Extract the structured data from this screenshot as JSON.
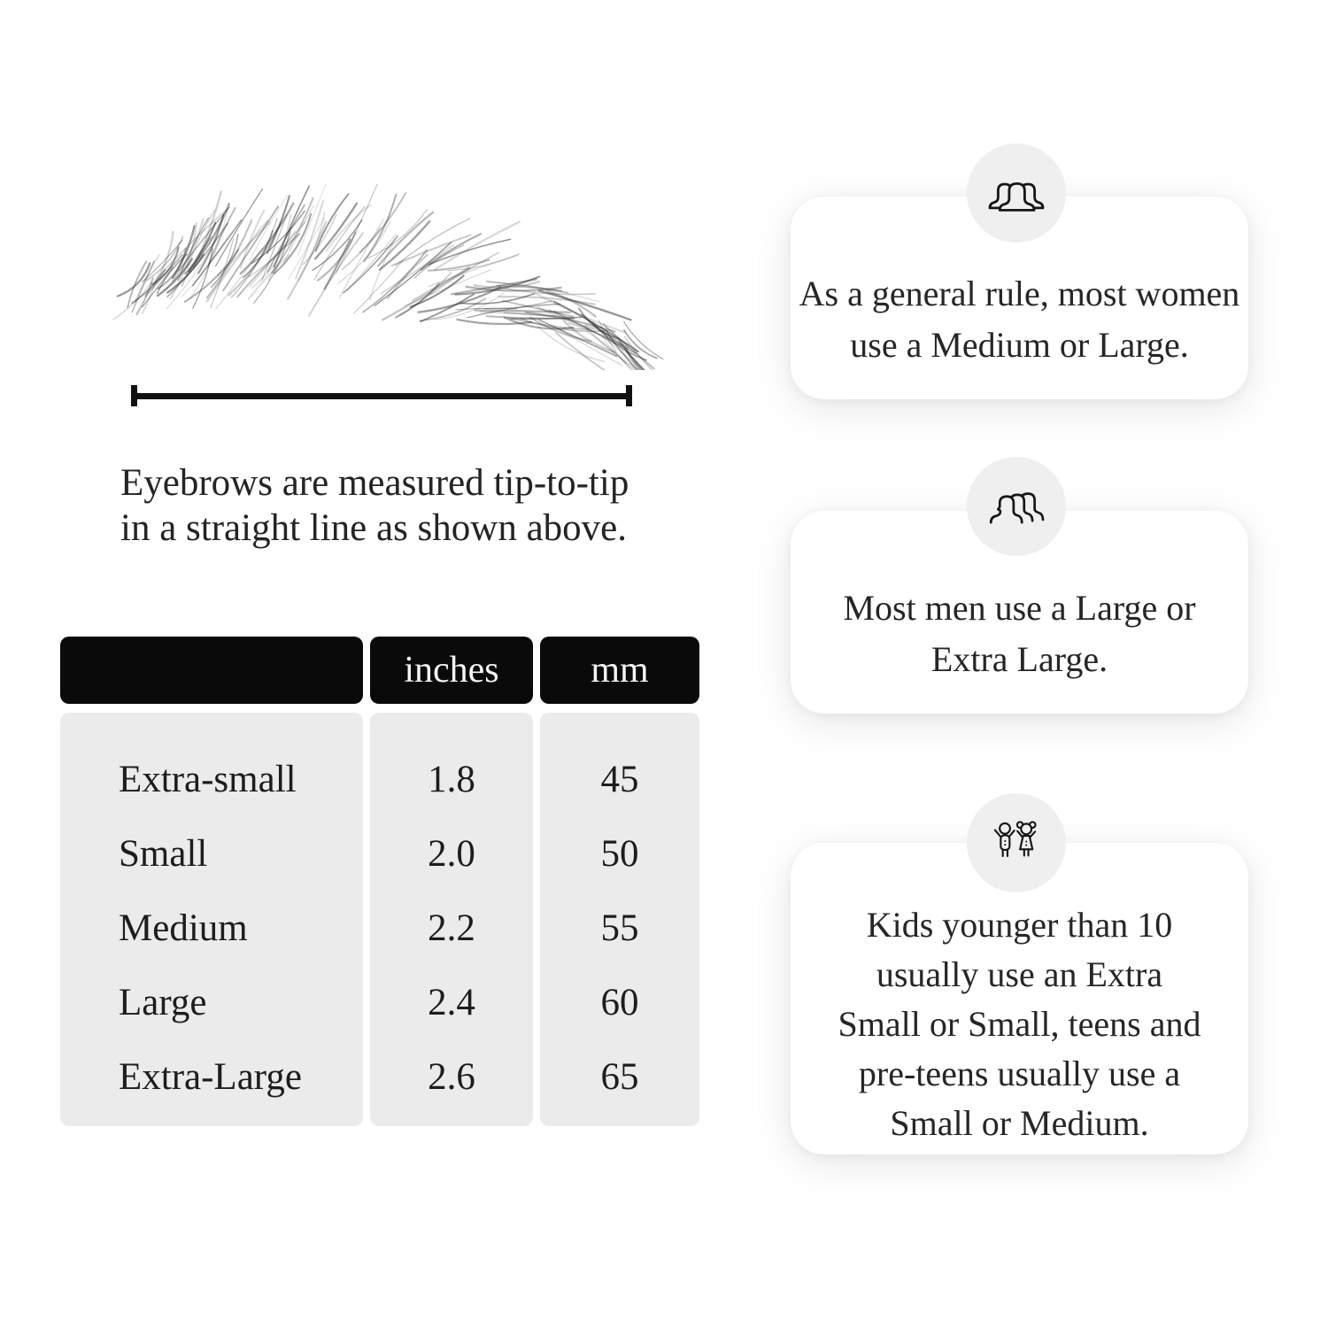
{
  "measurement": {
    "caption": "Eyebrows are measured tip-to-tip\nin a straight line as shown above."
  },
  "size_table": {
    "headers": [
      "",
      "inches",
      "mm"
    ],
    "rows": [
      {
        "label": "Extra-small",
        "inches": "1.8",
        "mm": "45"
      },
      {
        "label": "Small",
        "inches": "2.0",
        "mm": "50"
      },
      {
        "label": "Medium",
        "inches": "2.2",
        "mm": "55"
      },
      {
        "label": "Large",
        "inches": "2.4",
        "mm": "60"
      },
      {
        "label": "Extra-Large",
        "inches": "2.6",
        "mm": "65"
      }
    ]
  },
  "cards": [
    {
      "icon": "women-group-icon",
      "text": "As a general rule, most women\nuse a Medium or Large."
    },
    {
      "icon": "men-group-icon",
      "text": "Most men use a Large or\nExtra Large."
    },
    {
      "icon": "kids-icon",
      "text": "Kids younger than 10\nusually use an Extra\nSmall or Small, teens and\npre-teens usually use a\nSmall or Medium."
    }
  ],
  "colors": {
    "header_black": "#0a0a0a",
    "table_gray": "#ebebeb",
    "icon_circle_gray": "#f0efef",
    "card_white": "#ffffff",
    "text": "#1e1e1e"
  }
}
